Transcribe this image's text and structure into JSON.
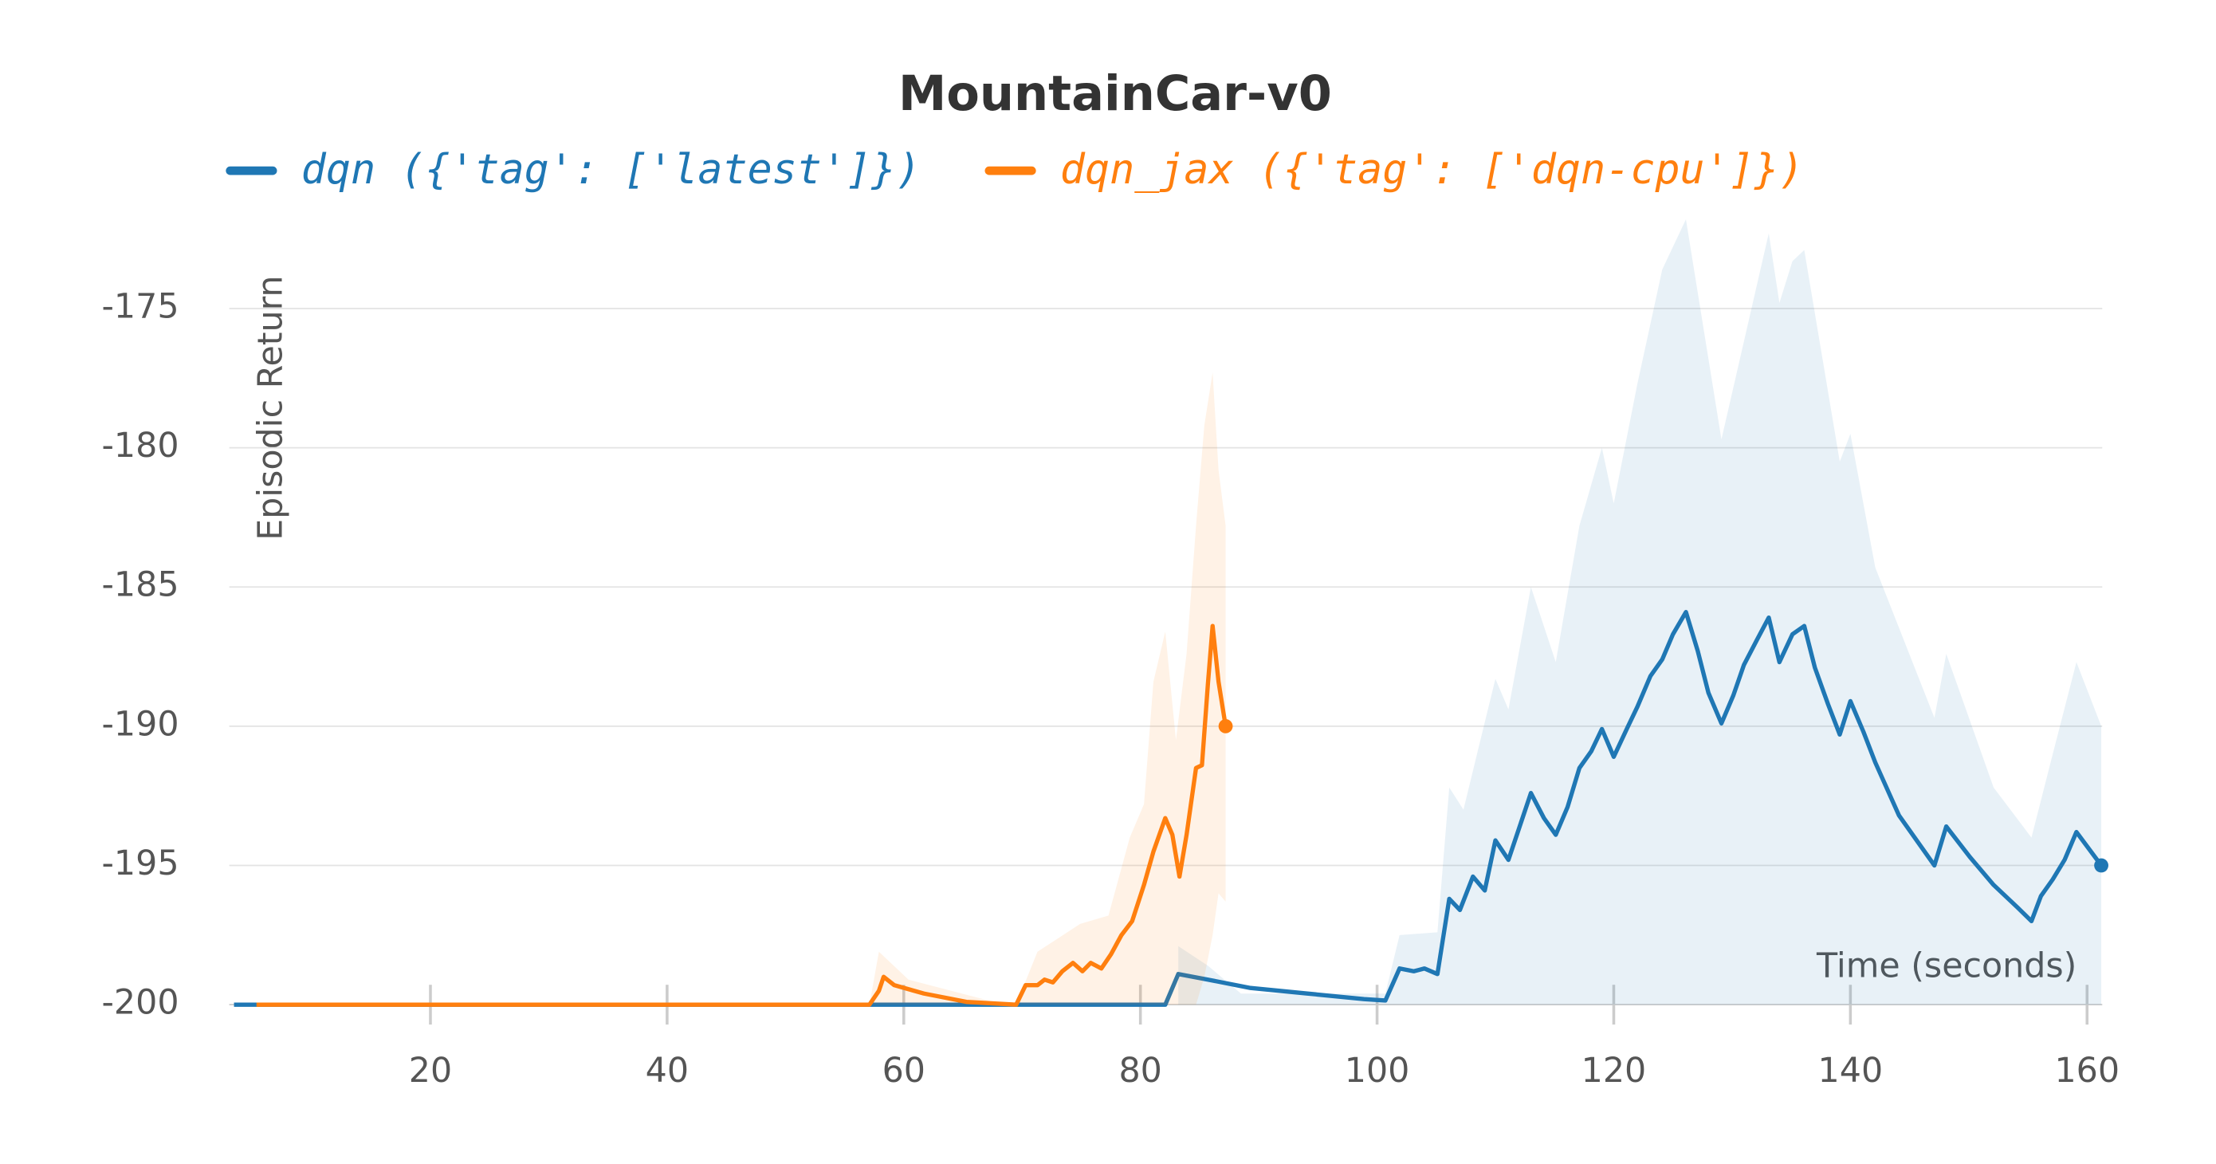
{
  "chart_data": {
    "type": "line",
    "title": "MountainCar-v0",
    "y_label": "Episodic Return",
    "x_label": "Time (seconds)",
    "xlim": [
      3,
      162
    ],
    "ylim": [
      -200,
      -171
    ],
    "xticks": [
      20,
      40,
      60,
      80,
      100,
      120,
      140,
      160
    ],
    "yticks": [
      -200,
      -195,
      -190,
      -185,
      -180,
      -175
    ],
    "grid": true,
    "legend": "top",
    "series": [
      {
        "name": "dqn ({'tag': ['latest']})",
        "color": "#1f77b4",
        "x": [
          3.4,
          82.1,
          83.2,
          85.7,
          89.3,
          94.1,
          98.9,
          100.7,
          101.9,
          103.1,
          104.0,
          105.1,
          106.1,
          107.0,
          108.1,
          109.1,
          110.0,
          111.1,
          113.0,
          114.1,
          115.1,
          116.1,
          117.1,
          118.1,
          119.0,
          120.0,
          121.1,
          122.0,
          123.1,
          124.1,
          125.0,
          126.1,
          127.1,
          128.0,
          129.1,
          130.1,
          131.0,
          132.1,
          133.1,
          134.0,
          135.1,
          136.1,
          137.0,
          138.1,
          139.1,
          140.0,
          141.1,
          142.1,
          144.1,
          146.1,
          147.1,
          148.1,
          150.1,
          152.1,
          154.1,
          155.3,
          156.1,
          157.1,
          158.1,
          159.1,
          161.2
        ],
        "values": [
          -200,
          -200,
          -198.9,
          -199.1,
          -199.4,
          -199.6,
          -199.8,
          -199.85,
          -198.7,
          -198.8,
          -198.7,
          -198.9,
          -196.2,
          -196.6,
          -195.4,
          -195.9,
          -194.1,
          -194.8,
          -192.4,
          -193.3,
          -193.9,
          -192.9,
          -191.5,
          -190.9,
          -190.1,
          -191.1,
          -190.1,
          -189.3,
          -188.2,
          -187.6,
          -186.7,
          -185.9,
          -187.3,
          -188.8,
          -189.9,
          -188.9,
          -187.8,
          -186.9,
          -186.1,
          -187.7,
          -186.7,
          -186.4,
          -187.9,
          -189.2,
          -190.3,
          -189.1,
          -190.2,
          -191.3,
          -193.2,
          -194.4,
          -195.0,
          -193.6,
          -194.7,
          -195.7,
          -196.5,
          -197.0,
          -196.1,
          -195.5,
          -194.8,
          -193.8,
          -195.0
        ],
        "band": {
          "x": [
            83.2,
            85.7,
            88.5,
            100.7,
            101.9,
            105.1,
            106.1,
            107.3,
            108.5,
            110.0,
            111.1,
            113.0,
            115.1,
            117.1,
            119.0,
            120.0,
            122.0,
            124.1,
            126.1,
            129.1,
            133.1,
            134.0,
            135.1,
            136.1,
            139.1,
            140.0,
            142.1,
            147.1,
            148.1,
            152.1,
            155.3,
            157.1,
            159.1,
            161.2
          ],
          "upper": [
            -197.9,
            -198.6,
            -199.6,
            -199.6,
            -197.5,
            -197.4,
            -192.2,
            -193.0,
            -190.9,
            -188.3,
            -189.4,
            -185.0,
            -187.7,
            -182.8,
            -180.0,
            -182.0,
            -177.7,
            -173.6,
            -171.8,
            -179.7,
            -172.3,
            -174.8,
            -173.3,
            -172.9,
            -180.5,
            -179.5,
            -184.3,
            -189.7,
            -187.4,
            -192.2,
            -194.0,
            -191.0,
            -187.7,
            -190.0
          ],
          "lower": [
            -200,
            -200,
            -200,
            -200,
            -200,
            -200,
            -200,
            -200,
            -200,
            -200,
            -200,
            -200,
            -200,
            -200,
            -200,
            -200,
            -200,
            -200,
            -200,
            -200,
            -200,
            -200,
            -200,
            -200,
            -200,
            -200,
            -200,
            -200,
            -200,
            -200,
            -200,
            -200,
            -200,
            -200
          ]
        }
      },
      {
        "name": "dqn_jax ({'tag': ['dqn-cpu']})",
        "color": "#ff7f0e",
        "x": [
          5.3,
          57.1,
          57.9,
          58.3,
          59.2,
          61.7,
          65.3,
          69.5,
          70.3,
          71.3,
          71.9,
          72.6,
          73.4,
          74.3,
          75.1,
          75.8,
          76.7,
          77.5,
          78.4,
          79.3,
          80.3,
          81.1,
          82.1,
          82.7,
          83.3,
          83.9,
          84.7,
          85.2,
          85.7,
          86.1,
          86.6,
          87.2
        ],
        "values": [
          -200,
          -200,
          -199.5,
          -199.0,
          -199.3,
          -199.6,
          -199.9,
          -200,
          -199.3,
          -199.3,
          -199.1,
          -199.2,
          -198.8,
          -198.5,
          -198.8,
          -198.5,
          -198.7,
          -198.2,
          -197.5,
          -197.0,
          -195.7,
          -194.5,
          -193.3,
          -193.9,
          -195.4,
          -193.9,
          -191.5,
          -191.4,
          -188.5,
          -186.4,
          -188.4,
          -190.0
        ],
        "band": {
          "x": [
            57.1,
            57.9,
            60.4,
            67.6,
            69.5,
            71.3,
            73.1,
            74.9,
            77.3,
            79.1,
            80.3,
            81.1,
            82.1,
            83.0,
            83.9,
            84.7,
            85.4,
            86.1,
            86.6,
            87.2
          ],
          "upper": [
            -200,
            -198.1,
            -199.1,
            -199.9,
            -200,
            -198.1,
            -197.6,
            -197.1,
            -196.8,
            -194.0,
            -192.8,
            -188.4,
            -186.6,
            -190.5,
            -187.4,
            -182.8,
            -179.2,
            -177.3,
            -180.8,
            -182.8
          ],
          "lower": [
            -200,
            -200,
            -200,
            -200,
            -200,
            -200,
            -200,
            -200,
            -200,
            -200,
            -200,
            -200,
            -200,
            -200,
            -200,
            -200,
            -199.0,
            -197.5,
            -196.0,
            -196.3
          ]
        }
      }
    ]
  }
}
